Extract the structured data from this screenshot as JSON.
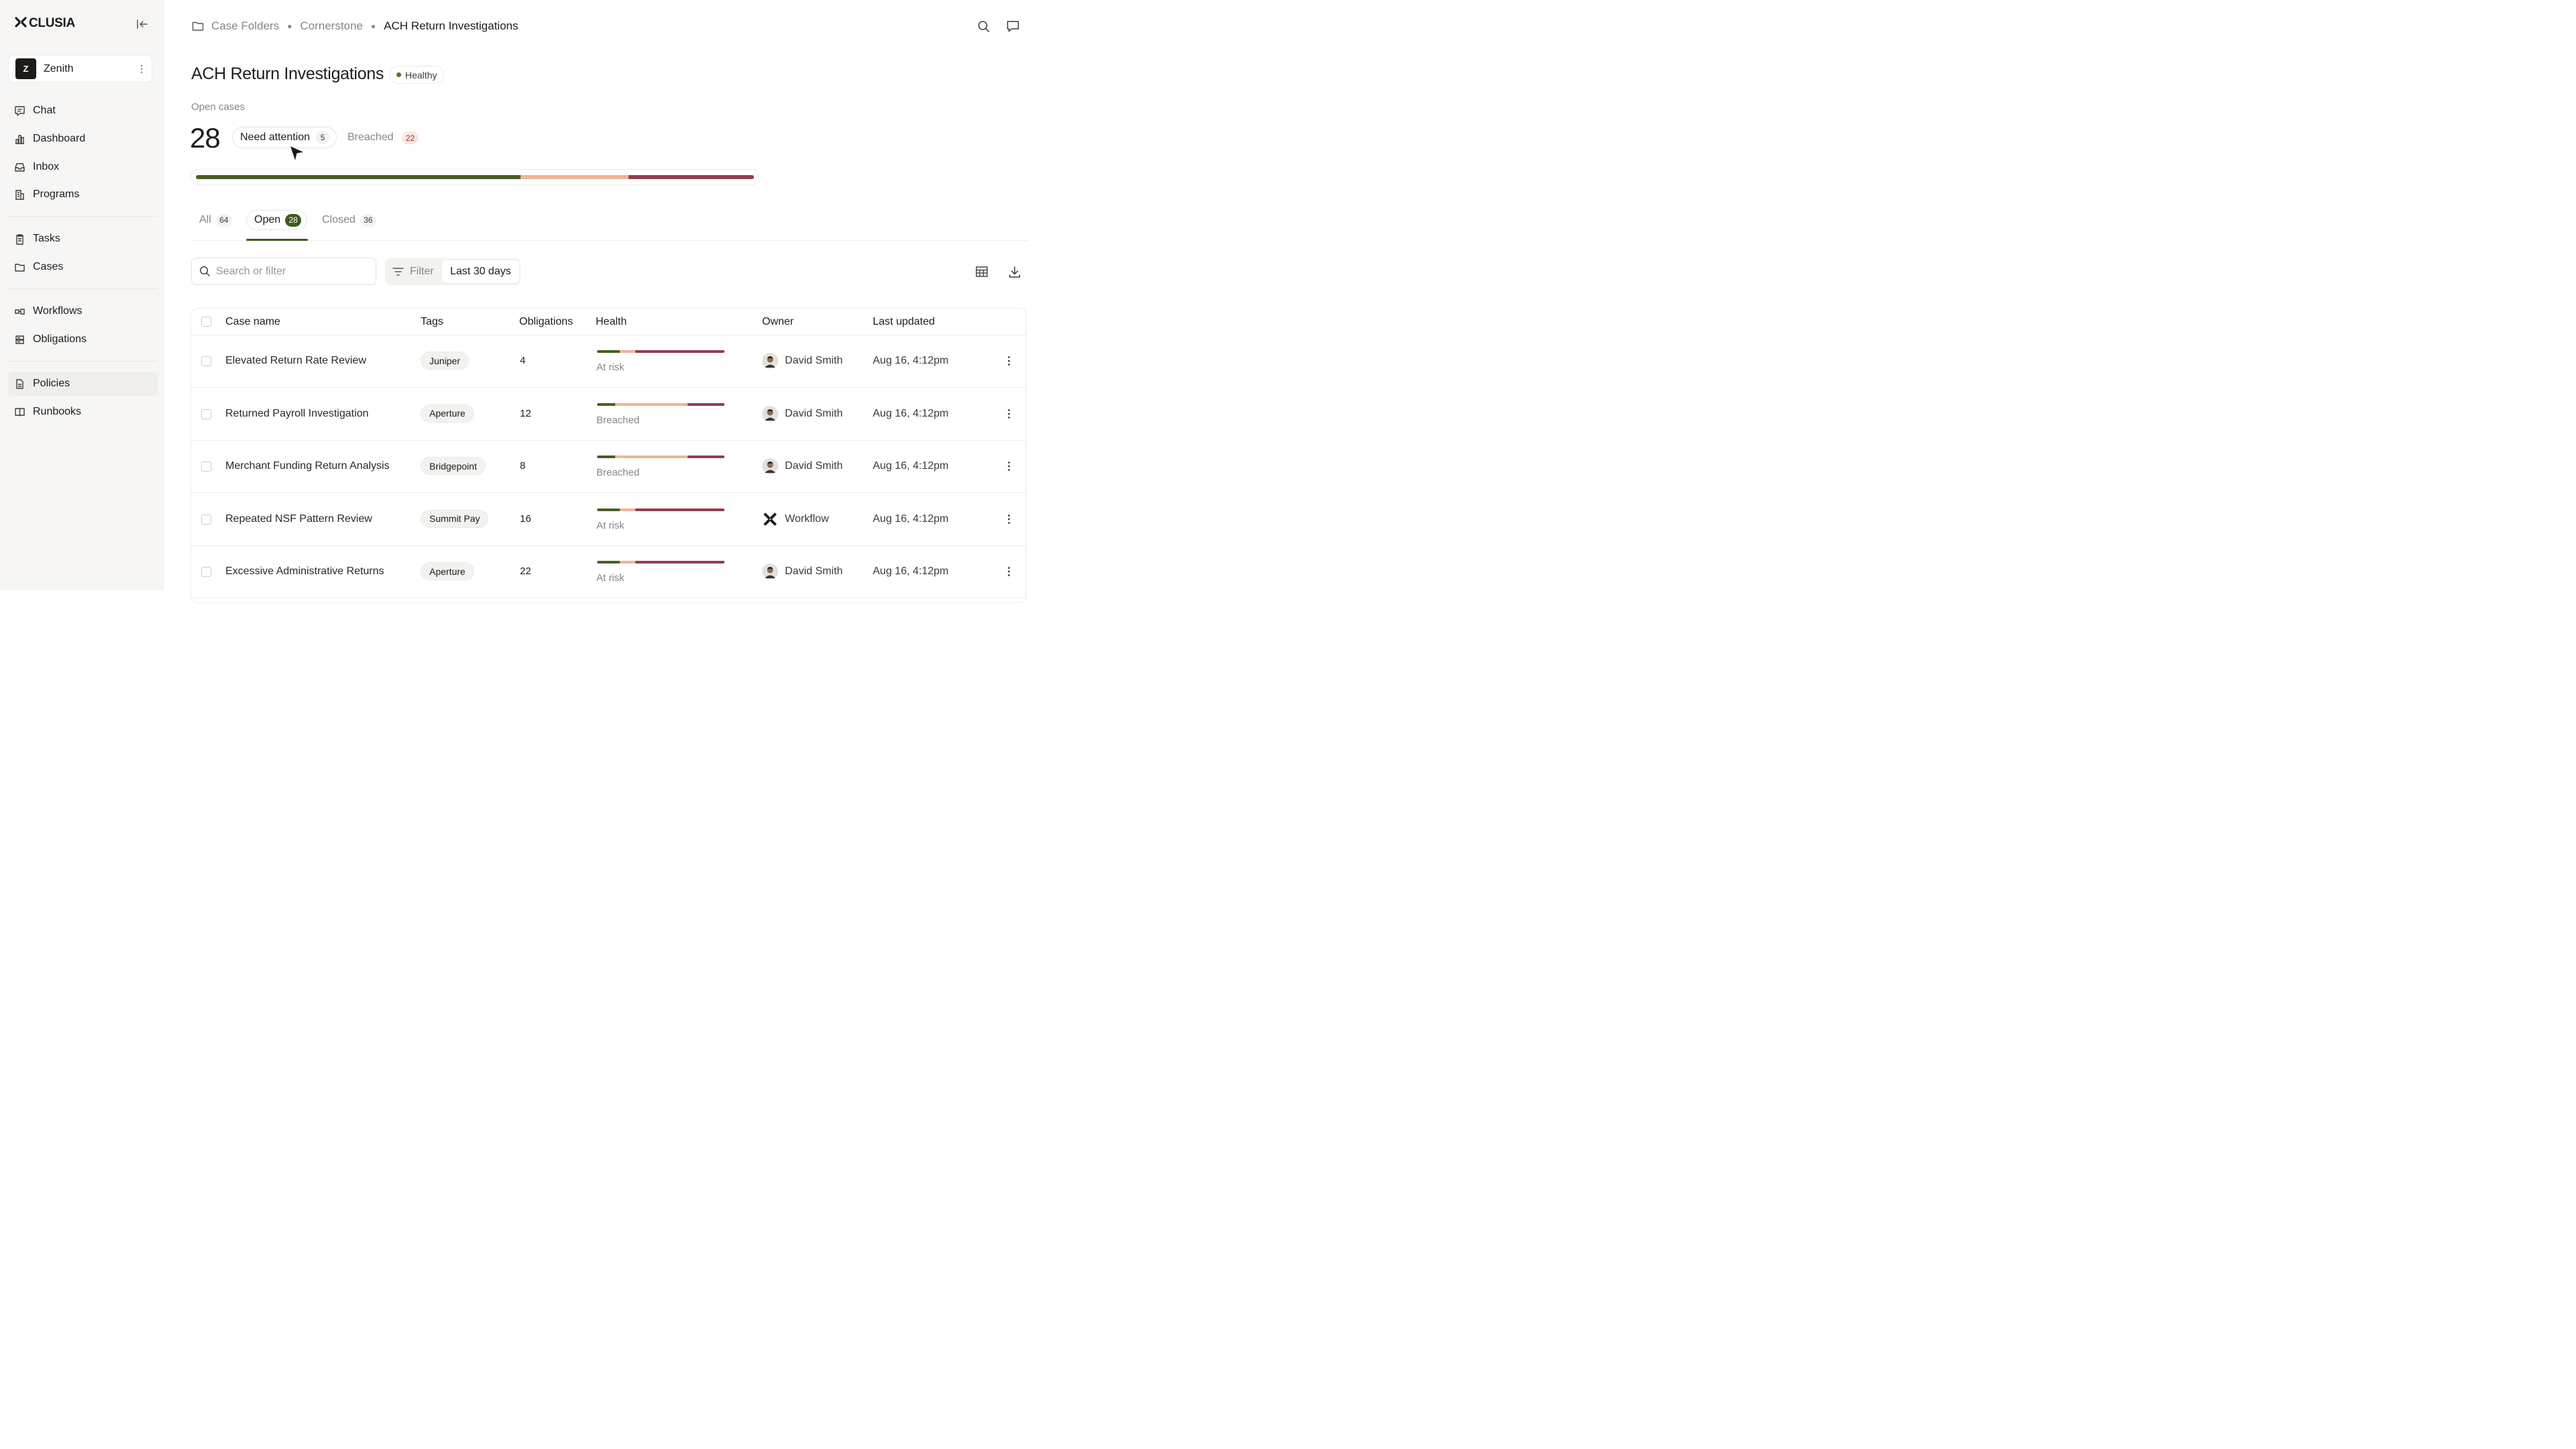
{
  "app": {
    "logo_text": "CLUSIA",
    "logo_mark": "⁘"
  },
  "workspace": {
    "initial": "Z",
    "name": "Zenith"
  },
  "sidebar": {
    "items": [
      {
        "label": "Chat",
        "icon": "chat-icon"
      },
      {
        "label": "Dashboard",
        "icon": "dashboard-icon"
      },
      {
        "label": "Inbox",
        "icon": "inbox-icon"
      },
      {
        "label": "Programs",
        "icon": "programs-icon"
      },
      {
        "label": "Tasks",
        "icon": "clipboard-icon"
      },
      {
        "label": "Cases",
        "icon": "folder-icon"
      },
      {
        "label": "Workflows",
        "icon": "workflow-icon"
      },
      {
        "label": "Obligations",
        "icon": "obligations-icon"
      },
      {
        "label": "Policies",
        "icon": "document-icon",
        "active": true
      },
      {
        "label": "Runbooks",
        "icon": "book-icon"
      }
    ]
  },
  "breadcrumb": {
    "root": "Case Folders",
    "parent": "Cornerstone",
    "current": "ACH Return Investigations"
  },
  "header": {
    "title": "ACH Return Investigations",
    "health_status": "Healthy",
    "health_color": "#4a7a1a"
  },
  "summary": {
    "open_label": "Open cases",
    "open_count": "28",
    "need_attention_label": "Need attention",
    "need_attention_count": "5",
    "breached_label": "Breached",
    "breached_count": "22",
    "distribution": [
      {
        "name": "healthy",
        "fraction": 0.582,
        "color": "#4a5e22"
      },
      {
        "name": "at-risk",
        "fraction": 0.193,
        "color": "#edb59a"
      },
      {
        "name": "breached",
        "fraction": 0.225,
        "color": "#923d50"
      }
    ]
  },
  "tabs": [
    {
      "label": "All",
      "count": "64"
    },
    {
      "label": "Open",
      "count": "28",
      "active": true
    },
    {
      "label": "Closed",
      "count": "36"
    }
  ],
  "toolbar": {
    "search_placeholder": "Search or filter",
    "filter_label": "Filter",
    "date_range": "Last 30 days"
  },
  "table": {
    "columns": {
      "case_name": "Case name",
      "tags": "Tags",
      "obligations": "Obligations",
      "health": "Health",
      "owner": "Owner",
      "updated": "Last updated"
    },
    "rows": [
      {
        "name": "Elevated Return Rate Review",
        "tag": "Juniper",
        "obligations": "4",
        "health": "At risk",
        "bar": [
          0.18,
          0.12,
          0.7
        ],
        "owner": "David Smith",
        "owner_type": "person",
        "updated": "Aug 16, 4:12pm"
      },
      {
        "name": "Returned Payroll Investigation",
        "tag": "Aperture",
        "obligations": "12",
        "health": "Breached",
        "bar": [
          0.14,
          0.57,
          0.29
        ],
        "owner": "David Smith",
        "owner_type": "person",
        "updated": "Aug 16, 4:12pm"
      },
      {
        "name": "Merchant Funding Return Analysis",
        "tag": "Bridgepoint",
        "obligations": "8",
        "health": "Breached",
        "bar": [
          0.14,
          0.57,
          0.29
        ],
        "owner": "David Smith",
        "owner_type": "person",
        "updated": "Aug 16, 4:12pm"
      },
      {
        "name": "Repeated NSF Pattern Review",
        "tag": "Summit Pay",
        "obligations": "16",
        "health": "At risk",
        "bar": [
          0.18,
          0.12,
          0.7
        ],
        "owner": "Workflow",
        "owner_type": "workflow",
        "updated": "Aug 16, 4:12pm"
      },
      {
        "name": "Excessive Administrative Returns",
        "tag": "Aperture",
        "obligations": "22",
        "health": "At risk",
        "bar": [
          0.18,
          0.12,
          0.7
        ],
        "owner": "David Smith",
        "owner_type": "person",
        "updated": "Aug 16, 4:12pm"
      }
    ]
  },
  "colors": {
    "accent": "#3f5a1a",
    "healthy": "#4a5e22",
    "at_risk": "#edb59a",
    "breached": "#923d50"
  }
}
